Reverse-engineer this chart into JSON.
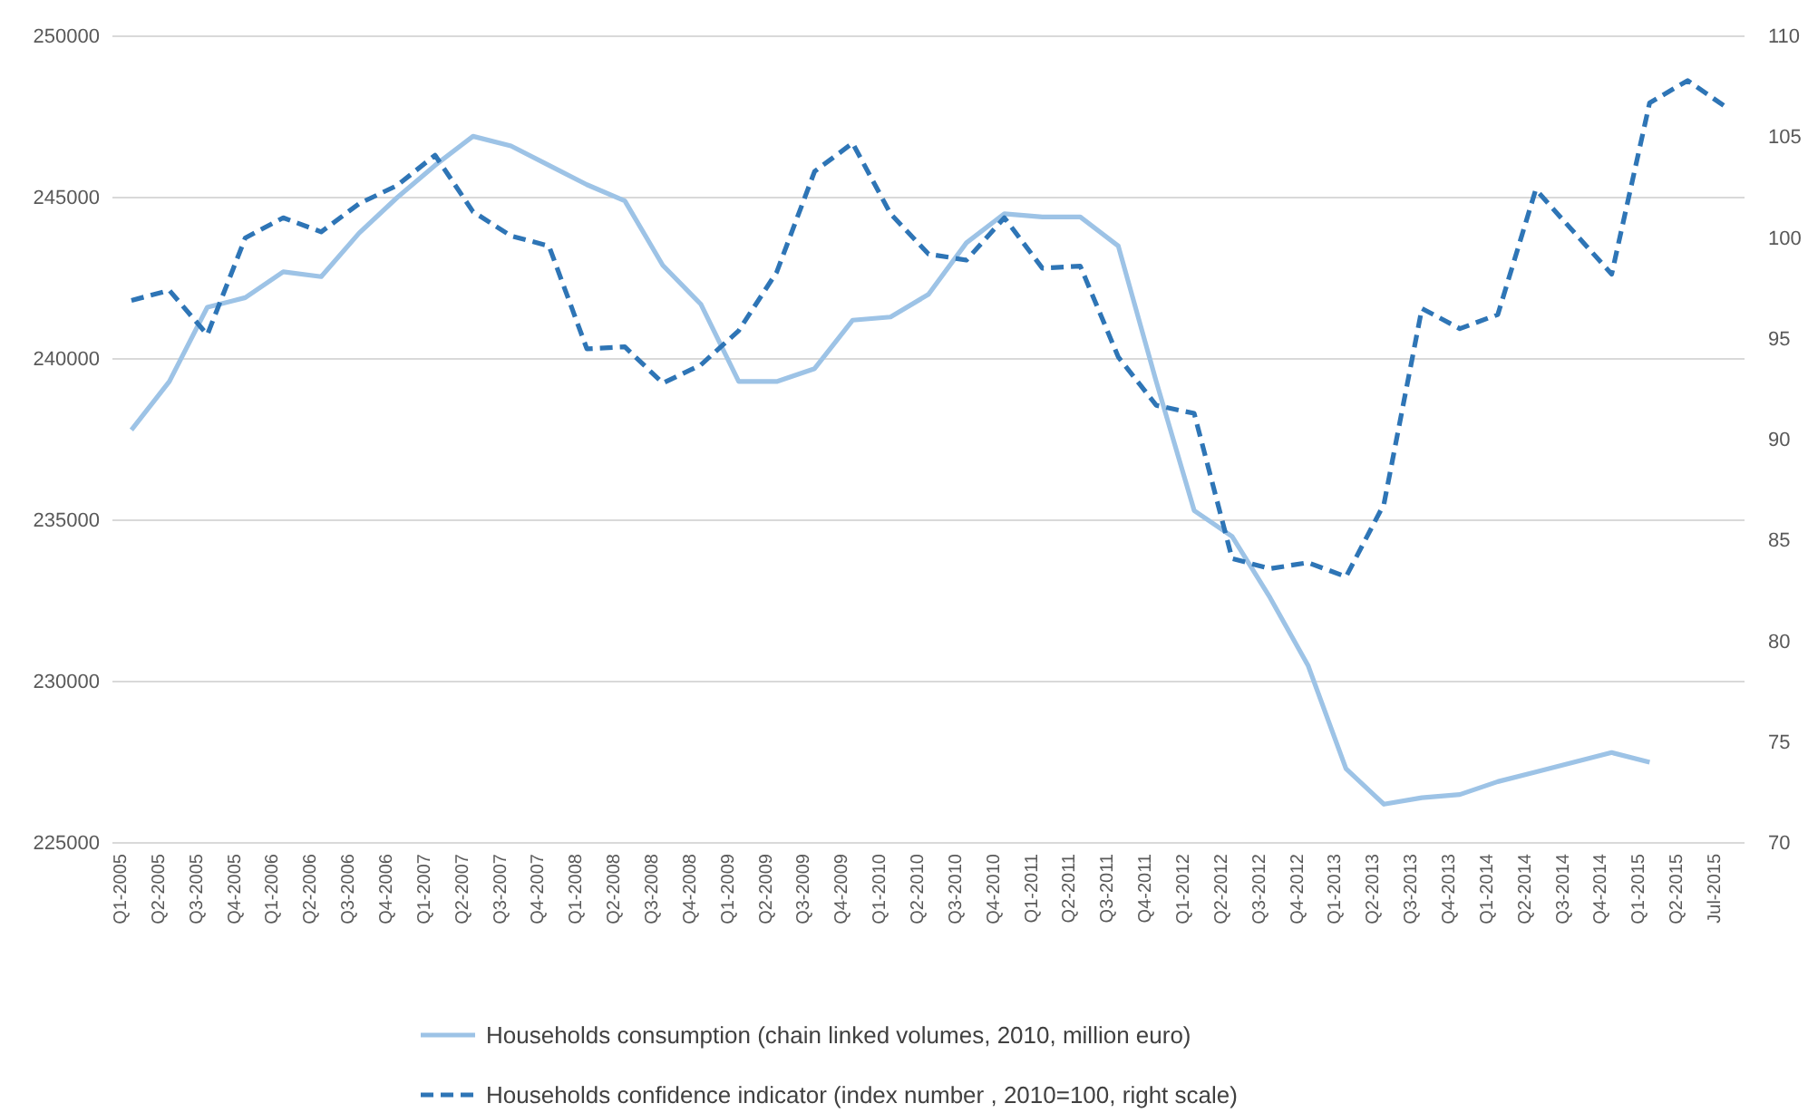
{
  "chart_data": {
    "type": "line",
    "categories": [
      "Q1-2005",
      "Q2-2005",
      "Q3-2005",
      "Q4-2005",
      "Q1-2006",
      "Q2-2006",
      "Q3-2006",
      "Q4-2006",
      "Q1-2007",
      "Q2-2007",
      "Q3-2007",
      "Q4-2007",
      "Q1-2008",
      "Q2-2008",
      "Q3-2008",
      "Q4-2008",
      "Q1-2009",
      "Q2-2009",
      "Q3-2009",
      "Q4-2009",
      "Q1-2010",
      "Q2-2010",
      "Q3-2010",
      "Q4-2010",
      "Q1-2011",
      "Q2-2011",
      "Q3-2011",
      "Q4-2011",
      "Q1-2012",
      "Q2-2012",
      "Q3-2012",
      "Q4-2012",
      "Q1-2013",
      "Q2-2013",
      "Q3-2013",
      "Q4-2013",
      "Q1-2014",
      "Q2-2014",
      "Q3-2014",
      "Q4-2014",
      "Q1-2015",
      "Q2-2015",
      "Jul-2015"
    ],
    "series": [
      {
        "name": "Households consumption (chain linked volumes, 2010, million euro)",
        "color": "#9dc3e6",
        "line_style": "solid",
        "values": [
          237800,
          239300,
          241600,
          241900,
          242700,
          242550,
          243900,
          245000,
          246000,
          246900,
          246600,
          246000,
          245400,
          244900,
          242900,
          241700,
          239300,
          239300,
          239700,
          241200,
          241300,
          242000,
          243600,
          244500,
          244400,
          244400,
          243500,
          239300,
          235300,
          234500,
          232600,
          230500,
          227300,
          226200,
          226400,
          226500,
          226900,
          227200,
          227500,
          227800,
          227500,
          null,
          null
        ]
      },
      {
        "name": "Households confidence indicator (index number , 2010=100, right scale)",
        "color": "#2e75b6",
        "line_style": "dashed",
        "axis": "y2",
        "values": [
          96.9,
          97.4,
          95.2,
          100.0,
          101.0,
          100.3,
          101.7,
          102.6,
          104.1,
          101.3,
          100.1,
          99.6,
          94.5,
          94.6,
          92.8,
          93.7,
          95.4,
          98.3,
          103.3,
          104.7,
          101.2,
          99.2,
          98.9,
          101.0,
          98.5,
          98.6,
          94.1,
          91.7,
          91.3,
          84.1,
          83.6,
          83.9,
          83.2,
          86.8,
          96.5,
          95.5,
          96.2,
          102.4,
          100.3,
          98.2,
          106.7,
          107.8,
          106.5
        ]
      }
    ],
    "ylim": [
      225000,
      250000
    ],
    "yticks": [
      225000,
      230000,
      235000,
      240000,
      245000,
      250000
    ],
    "y2lim": [
      70,
      110
    ],
    "y2ticks": [
      70,
      75,
      80,
      85,
      90,
      95,
      100,
      105,
      110
    ],
    "grid": "y",
    "legend": "bottom",
    "marker": "none"
  }
}
